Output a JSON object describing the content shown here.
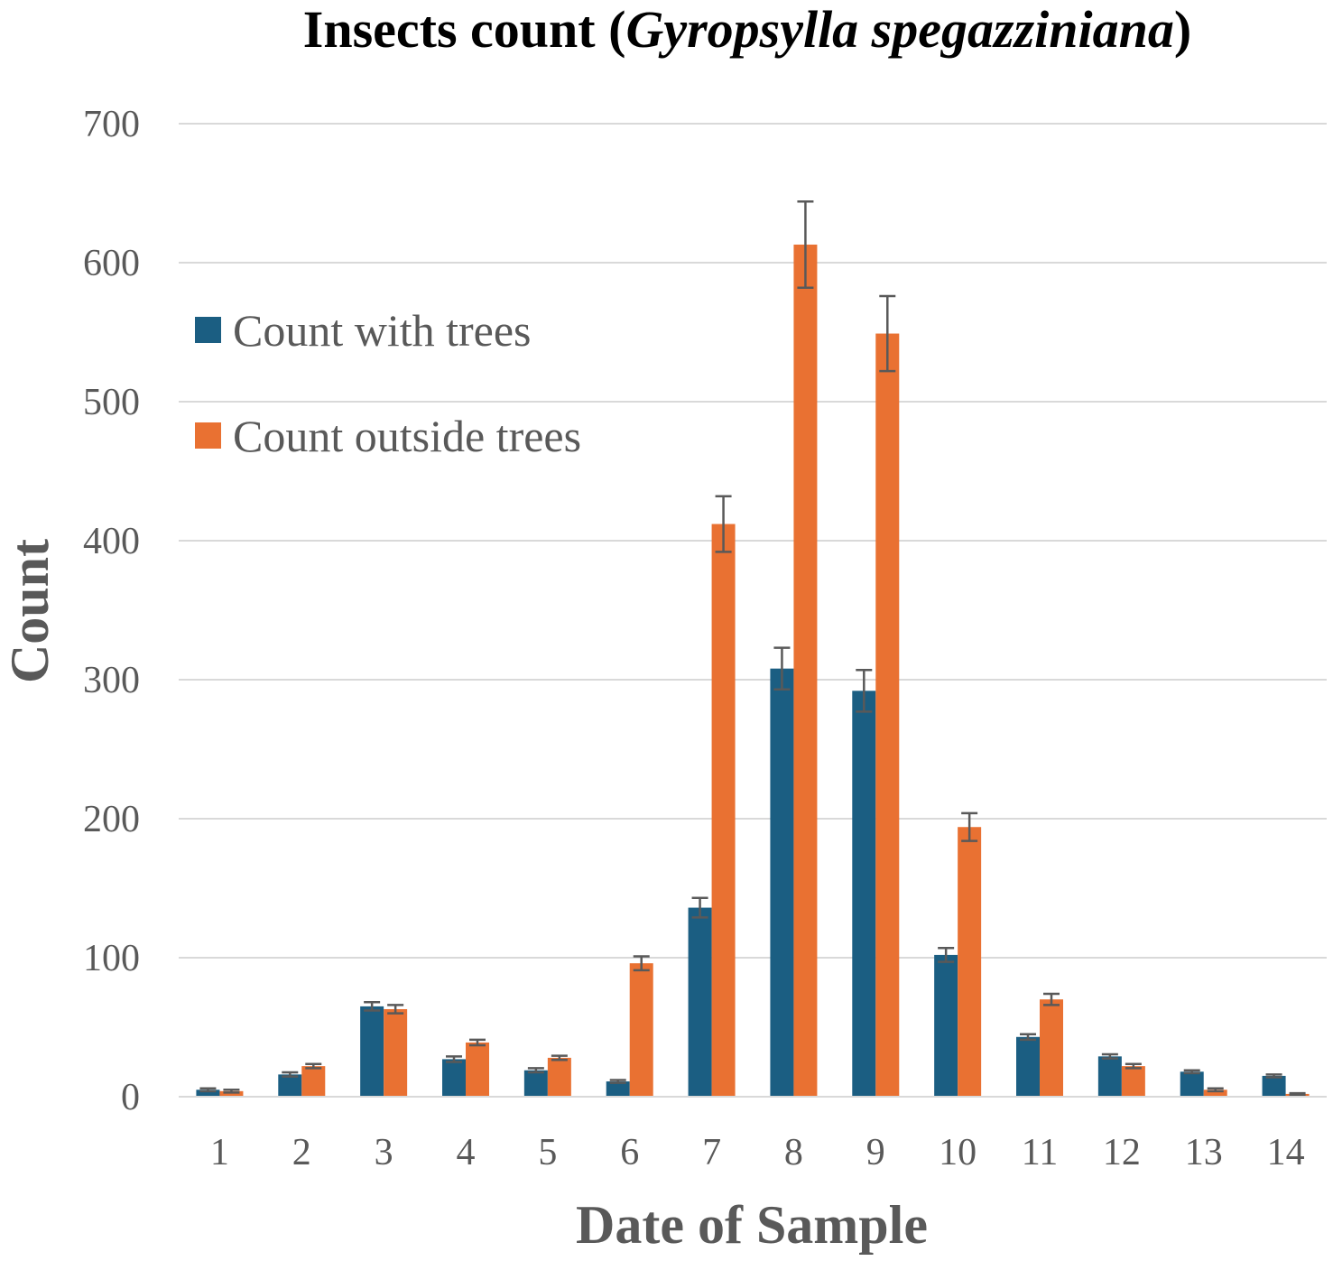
{
  "chart_data": {
    "type": "bar",
    "title": {
      "prefix": "Insects count (",
      "italic": "Gyropsylla spegazziniana",
      "suffix": ")"
    },
    "xlabel": "Date of Sample",
    "ylabel": "Count",
    "ylim": [
      0,
      700
    ],
    "yticks": [
      0,
      100,
      200,
      300,
      400,
      500,
      600,
      700
    ],
    "grid": true,
    "legend_position": "top-left",
    "categories": [
      "1",
      "2",
      "3",
      "4",
      "5",
      "6",
      "7",
      "8",
      "9",
      "10",
      "11",
      "12",
      "13",
      "14"
    ],
    "series": [
      {
        "name": "Count with trees",
        "color": "#1b5e82",
        "values": [
          5,
          16,
          65,
          27,
          19,
          11,
          136,
          308,
          292,
          102,
          43,
          29,
          18,
          15
        ],
        "errors": [
          1,
          1.5,
          3,
          2,
          1.5,
          1,
          7,
          15,
          15,
          5,
          2,
          1.5,
          1,
          1
        ]
      },
      {
        "name": "Count outside trees",
        "color": "#e97132",
        "values": [
          4,
          22,
          63,
          39,
          28,
          96,
          412,
          613,
          549,
          194,
          70,
          22,
          5,
          2
        ],
        "errors": [
          1,
          1.5,
          3,
          2,
          1.5,
          5,
          20,
          31,
          27,
          10,
          4,
          1.5,
          1,
          0.5
        ]
      }
    ]
  }
}
